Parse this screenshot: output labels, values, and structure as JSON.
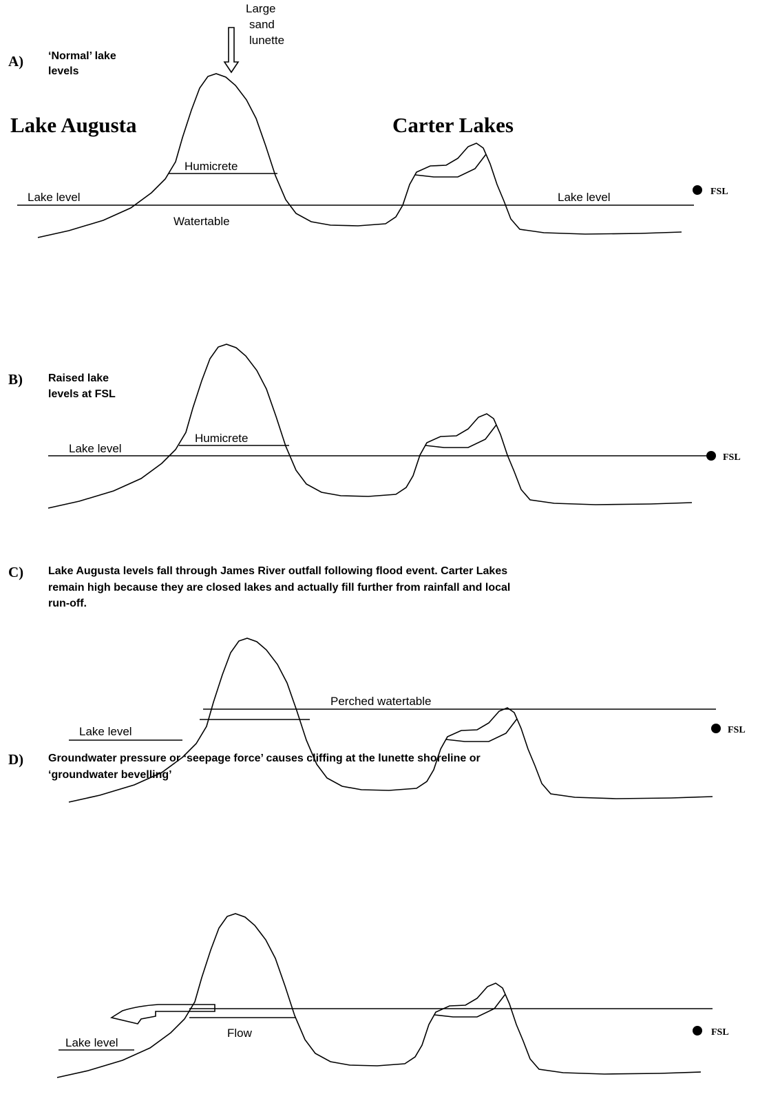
{
  "arrow_label": [
    "Large",
    "sand",
    "lunette"
  ],
  "lake_names": [
    "Lake Augusta",
    "Carter Lakes"
  ],
  "panels": [
    {
      "label": "A)",
      "caption": [
        "‘Normal’ lake",
        "levels"
      ],
      "annotations": [
        "Humicrete",
        "Lake level",
        "Watertable",
        "Lake level",
        "FSL"
      ]
    },
    {
      "label": "B)",
      "caption": [
        "Raised lake",
        "levels at FSL"
      ],
      "annotations": [
        "Humicrete",
        "Lake level",
        "FSL"
      ]
    },
    {
      "label": "C)",
      "caption": [
        "Lake Augusta levels fall through James River outfall following flood event.  Carter Lakes",
        "remain high because they are closed lakes and actually fill further from rainfall and local",
        "run-off."
      ],
      "annotations": [
        "Perched watertable",
        "Lake level",
        "FSL"
      ]
    },
    {
      "label": "D)",
      "caption": [
        "Groundwater pressure or ‘seepage force’ causes cliffing at the lunette shoreline or",
        "‘groundwater bevelling’"
      ],
      "annotations": [
        "Flow",
        "Lake level",
        "FSL"
      ]
    }
  ]
}
